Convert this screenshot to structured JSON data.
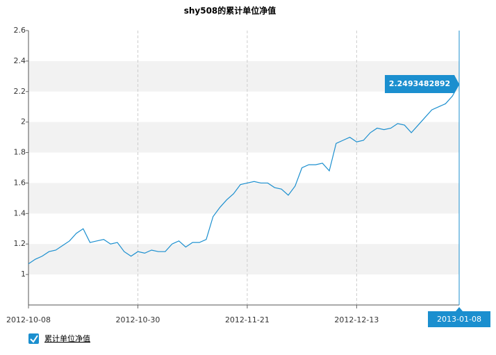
{
  "chart_data": {
    "type": "line",
    "title": "shy508的累计单位净值",
    "categories": [
      "2012-10-08",
      null,
      null,
      null,
      null,
      null,
      null,
      null,
      null,
      null,
      null,
      null,
      null,
      null,
      null,
      null,
      "2012-10-30",
      null,
      null,
      null,
      null,
      null,
      null,
      null,
      null,
      null,
      null,
      null,
      null,
      null,
      null,
      null,
      "2012-11-21",
      null,
      null,
      null,
      null,
      null,
      null,
      null,
      null,
      null,
      null,
      null,
      null,
      null,
      null,
      null,
      "2012-12-13",
      null,
      null,
      null,
      null,
      null,
      null,
      null,
      null,
      null,
      null,
      null,
      null,
      null,
      null,
      "2013-01-08"
    ],
    "series": [
      {
        "name": "累计单位净值",
        "color": "#1b8fcf",
        "values": [
          1.07,
          1.1,
          1.12,
          1.15,
          1.16,
          1.19,
          1.22,
          1.27,
          1.3,
          1.21,
          1.22,
          1.23,
          1.2,
          1.21,
          1.15,
          1.12,
          1.15,
          1.14,
          1.16,
          1.15,
          1.15,
          1.2,
          1.22,
          1.18,
          1.21,
          1.21,
          1.23,
          1.38,
          1.44,
          1.49,
          1.53,
          1.59,
          1.6,
          1.61,
          1.6,
          1.6,
          1.57,
          1.56,
          1.52,
          1.58,
          1.7,
          1.72,
          1.72,
          1.73,
          1.68,
          1.86,
          1.88,
          1.9,
          1.87,
          1.88,
          1.93,
          1.96,
          1.95,
          1.96,
          1.99,
          1.98,
          1.93,
          1.98,
          2.03,
          2.08,
          2.1,
          2.12,
          2.17,
          2.2493482892
        ]
      }
    ],
    "ylim": [
      0.8,
      2.6
    ],
    "yticks": [
      1.0,
      1.2,
      1.4,
      1.6,
      1.8,
      2.0,
      2.2,
      2.4,
      2.6
    ],
    "grid": true
  }
}
